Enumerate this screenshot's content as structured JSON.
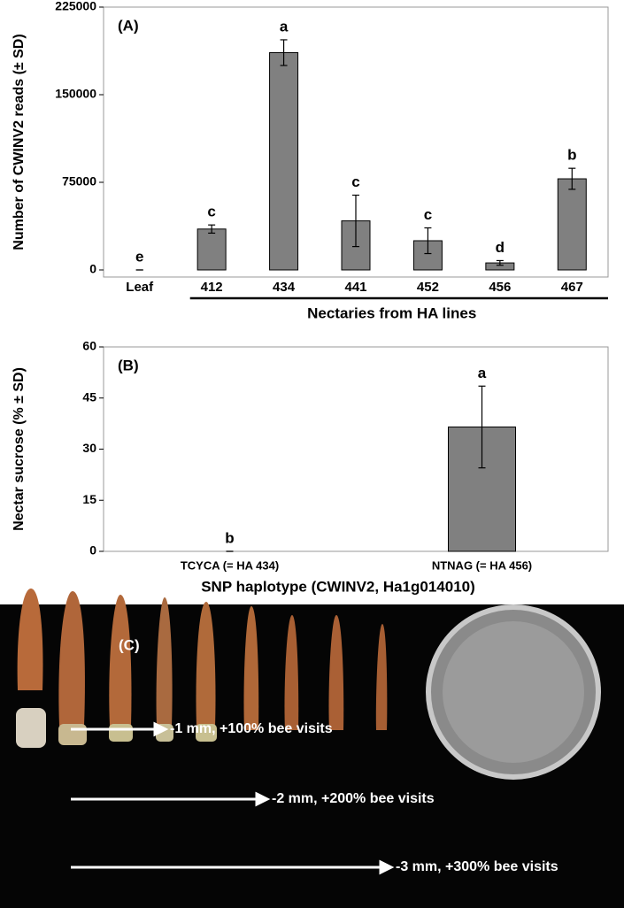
{
  "chart_data": [
    {
      "type": "bar",
      "title": "(A)",
      "ylabel": "Number of CWINV2 reads (± SD)",
      "categories": [
        "Leaf",
        "412",
        "434",
        "441",
        "452",
        "456",
        "467"
      ],
      "values": [
        0,
        35000,
        186000,
        42000,
        25000,
        6000,
        78000
      ],
      "errors": [
        0,
        3500,
        11000,
        22000,
        11000,
        2000,
        9000
      ],
      "letters": [
        "e",
        "c",
        "a",
        "c",
        "c",
        "d",
        "b"
      ],
      "group_label": "Nectaries from HA lines",
      "color": "#808080",
      "ylim": [
        0,
        225000
      ],
      "yticks": [
        0,
        75000,
        150000,
        225000
      ]
    },
    {
      "type": "bar",
      "title": "(B)",
      "ylabel": "Nectar sucrose (% ± SD)",
      "xlabel": "SNP haplotype (CWINV2, Ha1g014010)",
      "categories": [
        "TCYCA (= HA 434)",
        "NTNAG (= HA 456)"
      ],
      "values": [
        0,
        36.5
      ],
      "errors": [
        0,
        12
      ],
      "letters": [
        "b",
        "a"
      ],
      "color": "#808080",
      "ylim": [
        0,
        60
      ],
      "yticks": [
        0,
        15,
        30,
        45,
        60
      ]
    }
  ],
  "panel_c": {
    "label": "(C)",
    "annotations": [
      "-1 mm, +100% bee visits",
      "-2 mm, +200% bee visits",
      "-3 mm, +300% bee visits"
    ]
  }
}
